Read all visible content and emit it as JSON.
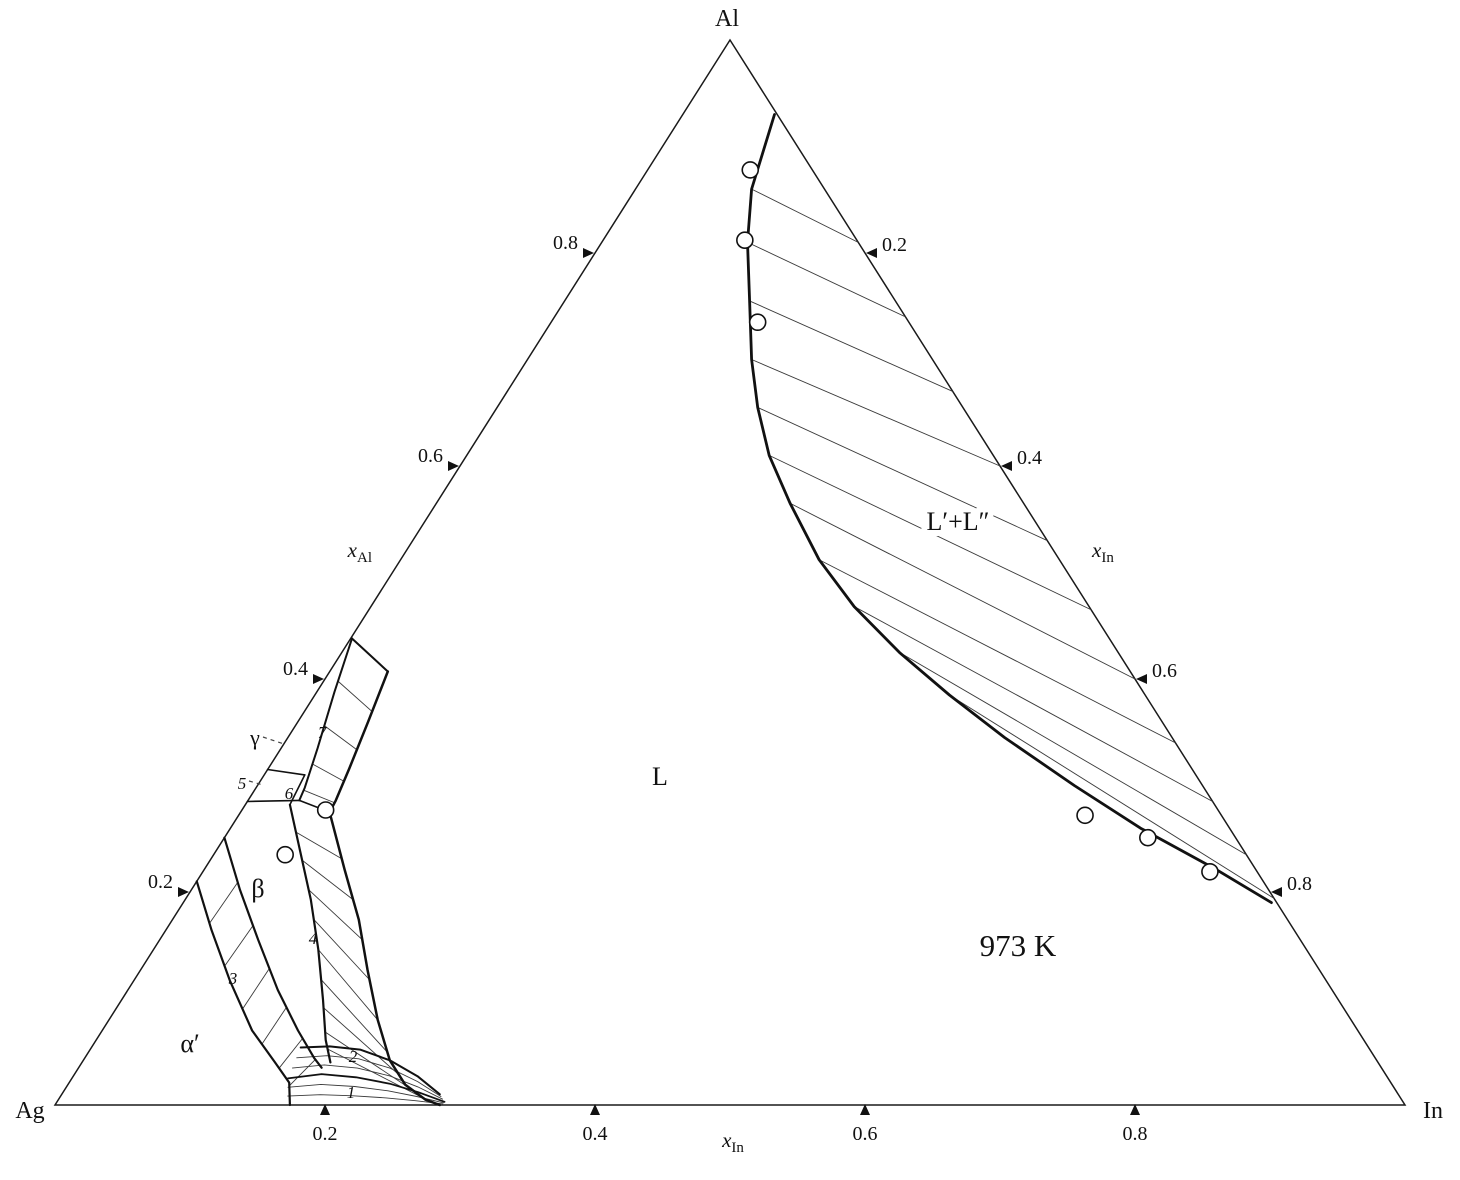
{
  "labels": {
    "corner_top": "Al",
    "corner_left": "Ag",
    "corner_right": "In",
    "region_L": "L",
    "region_gap": "L′+L″",
    "temperature": "973 K",
    "alpha": "α′",
    "beta": "β",
    "gamma": "γ",
    "n1": "1",
    "n2": "2",
    "n3": "3",
    "n4": "4",
    "n5": "5",
    "n6": "6",
    "n7": "7"
  },
  "axes": {
    "left": {
      "symbol": "x",
      "subscript": "Al"
    },
    "right": {
      "symbol": "x",
      "subscript": "In"
    },
    "bottom": {
      "symbol": "x",
      "subscript": "In"
    }
  },
  "chart_data": {
    "type": "ternary-phase-diagram",
    "system_corners": [
      "Ag",
      "Al",
      "In"
    ],
    "temperature": "973 K",
    "axis_ticks": {
      "left_xAl": [
        0.2,
        0.4,
        0.6,
        0.8
      ],
      "right_xIn": [
        0.2,
        0.4,
        0.6,
        0.8
      ],
      "bottom_xIn": [
        0.2,
        0.4,
        0.6,
        0.8
      ]
    },
    "phase_regions": [
      "L",
      "L′+L″",
      "α′",
      "β",
      "γ",
      "1",
      "2",
      "3",
      "4",
      "5",
      "6",
      "7"
    ],
    "binodal": [
      [
        0.068,
        0.93
      ],
      [
        0.086,
        0.86
      ],
      [
        0.108,
        0.81
      ],
      [
        0.137,
        0.755
      ],
      [
        0.166,
        0.7
      ],
      [
        0.193,
        0.655
      ],
      [
        0.224,
        0.61
      ],
      [
        0.262,
        0.565
      ],
      [
        0.31,
        0.512
      ],
      [
        0.358,
        0.468
      ],
      [
        0.413,
        0.425
      ],
      [
        0.47,
        0.385
      ],
      [
        0.531,
        0.345
      ],
      [
        0.605,
        0.3
      ],
      [
        0.674,
        0.26
      ],
      [
        0.748,
        0.222
      ],
      [
        0.806,
        0.19
      ]
    ],
    "tie_lines": [
      [
        [
          0.086,
          0.86
        ],
        [
          0.19,
          0.81
        ]
      ],
      [
        [
          0.108,
          0.81
        ],
        [
          0.26,
          0.74
        ]
      ],
      [
        [
          0.137,
          0.755
        ],
        [
          0.33,
          0.67
        ]
      ],
      [
        [
          0.166,
          0.7
        ],
        [
          0.4,
          0.6
        ]
      ],
      [
        [
          0.193,
          0.655
        ],
        [
          0.47,
          0.53
        ]
      ],
      [
        [
          0.224,
          0.61
        ],
        [
          0.535,
          0.465
        ]
      ],
      [
        [
          0.262,
          0.565
        ],
        [
          0.6,
          0.4
        ]
      ],
      [
        [
          0.31,
          0.512
        ],
        [
          0.66,
          0.34
        ]
      ],
      [
        [
          0.358,
          0.468
        ],
        [
          0.715,
          0.285
        ]
      ],
      [
        [
          0.413,
          0.425
        ],
        [
          0.765,
          0.235
        ]
      ],
      [
        [
          0.47,
          0.385
        ],
        [
          0.806,
          0.194
        ]
      ]
    ],
    "experimental_points": [
      [
        0.076,
        0.878
      ],
      [
        0.105,
        0.812
      ],
      [
        0.153,
        0.735
      ],
      [
        0.627,
        0.272
      ],
      [
        0.684,
        0.251
      ],
      [
        0.746,
        0.219
      ],
      [
        0.053,
        0.235
      ],
      [
        0.062,
        0.277
      ]
    ],
    "boundaries": {
      "c_a": {
        "w": 2.2,
        "pts": [
          [
            0.0,
            0.21
          ],
          [
            0.034,
            0.164
          ],
          [
            0.071,
            0.117
          ],
          [
            0.111,
            0.07
          ],
          [
            0.143,
            0.04
          ],
          [
            0.163,
            0.021
          ],
          [
            0.174,
            0.0
          ]
        ]
      },
      "c_b": {
        "w": 2.2,
        "pts": [
          [
            0.0,
            0.251
          ],
          [
            0.036,
            0.202
          ],
          [
            0.073,
            0.155
          ],
          [
            0.111,
            0.108
          ],
          [
            0.145,
            0.07
          ],
          [
            0.17,
            0.044
          ],
          [
            0.18,
            0.035
          ]
        ]
      },
      "c_c": {
        "w": 2.2,
        "pts": [
          [
            0.033,
            0.282
          ],
          [
            0.062,
            0.239
          ],
          [
            0.093,
            0.193
          ],
          [
            0.122,
            0.146
          ],
          [
            0.149,
            0.099
          ],
          [
            0.17,
            0.061
          ],
          [
            0.184,
            0.04
          ]
        ]
      },
      "c_d": {
        "w": 2.5,
        "pts": [
          [
            0.068,
            0.272
          ],
          [
            0.104,
            0.221
          ],
          [
            0.138,
            0.174
          ],
          [
            0.168,
            0.127
          ],
          [
            0.199,
            0.08
          ],
          [
            0.227,
            0.042
          ],
          [
            0.25,
            0.019
          ],
          [
            0.272,
            0.005
          ],
          [
            0.285,
            0.0
          ]
        ]
      },
      "b7l": {
        "w": 2.0,
        "pts": [
          [
            0.001,
            0.438
          ],
          [
            0.013,
            0.388
          ],
          [
            0.027,
            0.335
          ],
          [
            0.036,
            0.298
          ],
          [
            0.038,
            0.286
          ]
        ]
      },
      "b7r": {
        "w": 2.5,
        "pts": [
          [
            0.043,
            0.407
          ],
          [
            0.052,
            0.36
          ],
          [
            0.06,
            0.316
          ],
          [
            0.065,
            0.286
          ],
          [
            0.066,
            0.275
          ]
        ]
      },
      "cap7": {
        "w": 2.0,
        "pts": [
          [
            0.001,
            0.438
          ],
          [
            0.043,
            0.407
          ]
        ]
      },
      "g5": {
        "w": 1.6,
        "pts": [
          [
            0.0,
            0.315
          ],
          [
            0.03,
            0.31
          ]
        ]
      },
      "s56": {
        "w": 1.6,
        "pts": [
          [
            0.03,
            0.31
          ],
          [
            0.033,
            0.282
          ]
        ]
      },
      "btop": {
        "w": 1.6,
        "pts": [
          [
            0.0,
            0.285
          ],
          [
            0.038,
            0.286
          ],
          [
            0.066,
            0.275
          ]
        ]
      },
      "c_i": {
        "w": 2.0,
        "pts": [
          [
            0.155,
            0.054
          ],
          [
            0.176,
            0.055
          ],
          [
            0.2,
            0.052
          ],
          [
            0.227,
            0.042
          ],
          [
            0.255,
            0.027
          ],
          [
            0.28,
            0.01
          ]
        ]
      },
      "c_h": {
        "w": 1.8,
        "pts": [
          [
            0.16,
            0.025
          ],
          [
            0.183,
            0.029
          ],
          [
            0.21,
            0.026
          ],
          [
            0.238,
            0.02
          ],
          [
            0.263,
            0.012
          ],
          [
            0.287,
            0.003
          ]
        ]
      },
      "edge1": {
        "w": 0,
        "pts": [
          [
            0.172,
            0.0
          ],
          [
            0.196,
            0.0
          ],
          [
            0.22,
            0.0
          ],
          [
            0.244,
            0.0
          ],
          [
            0.266,
            0.0
          ],
          [
            0.287,
            0.0
          ]
        ]
      }
    },
    "hatched_regions": [
      {
        "region": "3",
        "a": "c_a",
        "b": "c_b",
        "mode": "across",
        "count": 6
      },
      {
        "region": "4",
        "a": "c_c",
        "b": "c_d",
        "mode": "across",
        "count": 9
      },
      {
        "region": "7",
        "a": "b7l",
        "b": "b7r",
        "mode": "across",
        "count": 4
      },
      {
        "region": "2",
        "a": "c_i",
        "b": "c_h",
        "mode": "along",
        "count": 2
      },
      {
        "region": "1",
        "a": "c_h",
        "b": "edge1",
        "mode": "along",
        "count": 2
      }
    ],
    "leaders": [
      {
        "from": [
          263,
          737
        ],
        "to": [
          284,
          744
        ]
      },
      {
        "from": [
          249,
          781
        ],
        "to": [
          263,
          785
        ]
      }
    ]
  }
}
